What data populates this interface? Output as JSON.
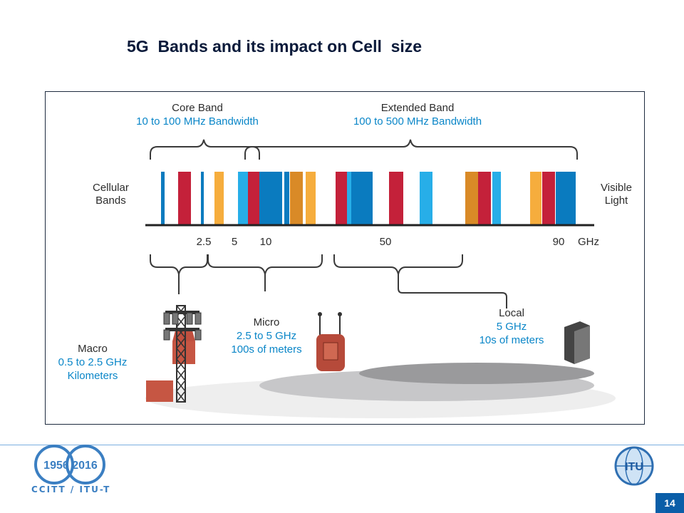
{
  "title": "5G  Bands and its impact on Cell  size",
  "diagram": {
    "core_band": {
      "label": "Core Band",
      "bandwidth": "10 to 100 MHz Bandwidth"
    },
    "extended_band": {
      "label": "Extended Band",
      "bandwidth": "100 to 500 MHz Bandwidth"
    },
    "left_axis_label": "Cellular\nBands",
    "right_axis_label": "Visible\nLight",
    "ticks": [
      "2.5",
      "5",
      "10",
      "50",
      "90"
    ],
    "unit": "GHz",
    "cells": {
      "macro": {
        "name": "Macro",
        "range": "0.5 to 2.5 GHz",
        "coverage": "Kilometers"
      },
      "micro": {
        "name": "Micro",
        "range": "2.5 to 5 GHz",
        "coverage": "100s of meters"
      },
      "local": {
        "name": "Local",
        "range": "5 GHz",
        "coverage": "10s of meters"
      }
    },
    "colors": {
      "blue": "#0a7bbf",
      "light_blue": "#27aee8",
      "red": "#c4213a",
      "orange": "#f6ad3d",
      "dark_orange": "#d98a27",
      "label_blue": "#0a86c8"
    }
  },
  "footer": {
    "anniversary": "1956 2016",
    "org_text": "CCITT / ITU-T",
    "itu_logo": "ITU",
    "page_number": "14"
  }
}
